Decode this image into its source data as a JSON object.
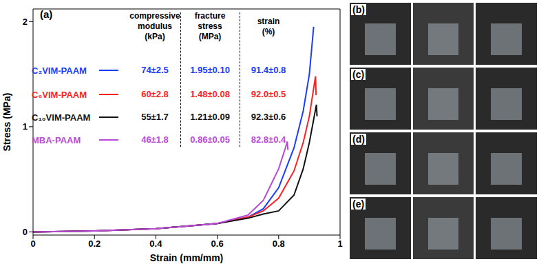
{
  "chart_data": {
    "type": "line",
    "panel_label": "(a)",
    "x_label": "Strain (mm/mm)",
    "y_label": "Stress (MPa)",
    "xlim": [
      0,
      1
    ],
    "xticks": [
      0,
      0.2,
      0.4,
      0.6,
      0.8,
      1
    ],
    "ylim": [
      -0.03,
      2.12
    ],
    "yticks": [
      0,
      1,
      2
    ],
    "grid": false,
    "series": [
      {
        "name": "C₂VIM-PAAM",
        "color": "#1a3cff",
        "x": [
          0,
          0.2,
          0.4,
          0.6,
          0.7,
          0.75,
          0.8,
          0.85,
          0.88,
          0.9,
          0.914
        ],
        "values": [
          0,
          0.01,
          0.03,
          0.08,
          0.14,
          0.22,
          0.42,
          0.8,
          1.15,
          1.5,
          1.95
        ]
      },
      {
        "name": "C₆VIM-PAAM",
        "color": "#ff1f1f",
        "x": [
          0,
          0.2,
          0.4,
          0.6,
          0.7,
          0.75,
          0.8,
          0.85,
          0.88,
          0.9,
          0.92,
          0.922
        ],
        "values": [
          0,
          0.01,
          0.03,
          0.08,
          0.14,
          0.2,
          0.32,
          0.58,
          0.85,
          1.1,
          1.48,
          1.3
        ]
      },
      {
        "name": "C₁₀VIM-PAAM",
        "color": "#111111",
        "x": [
          0,
          0.2,
          0.4,
          0.6,
          0.7,
          0.75,
          0.8,
          0.85,
          0.88,
          0.9,
          0.923,
          0.925
        ],
        "values": [
          0,
          0.01,
          0.03,
          0.08,
          0.13,
          0.17,
          0.2,
          0.35,
          0.6,
          0.85,
          1.21,
          1.1
        ]
      },
      {
        "name": "MBA-PAAM",
        "color": "#b84ad6",
        "x": [
          0,
          0.2,
          0.4,
          0.6,
          0.7,
          0.75,
          0.78,
          0.8,
          0.82,
          0.828,
          0.83
        ],
        "values": [
          0,
          0.01,
          0.03,
          0.08,
          0.16,
          0.3,
          0.48,
          0.6,
          0.78,
          0.86,
          0.78
        ]
      }
    ],
    "table": {
      "columns": [
        [
          "compressive",
          "modulus",
          "(kPa)"
        ],
        [
          "fracture",
          "stress",
          "(MPa)"
        ],
        [
          "strain",
          "(%)"
        ]
      ],
      "rows": [
        [
          "74±2.5",
          "1.95±0.10",
          "91.4±0.8"
        ],
        [
          "60±2.8",
          "1.48±0.08",
          "92.0±0.5"
        ],
        [
          "55±1.7",
          "1.21±0.09",
          "92.3±0.6"
        ],
        [
          "46±1.8",
          "0.86±0.05",
          "82.8±0.4"
        ]
      ]
    }
  },
  "photo_panels": [
    "(b)",
    "(c)",
    "(d)",
    "(e)"
  ]
}
